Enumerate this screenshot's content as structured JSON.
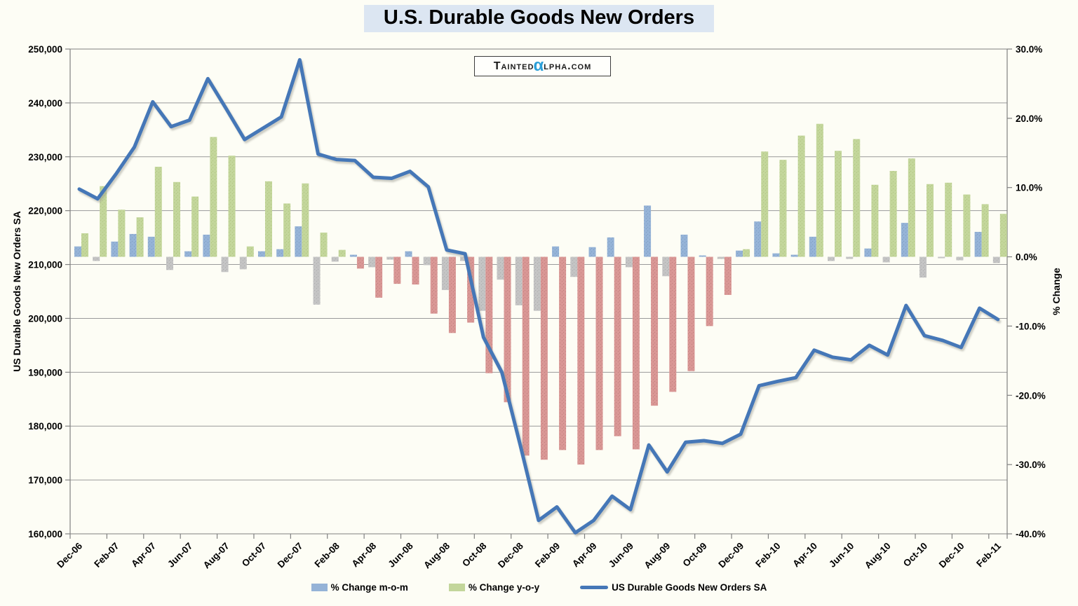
{
  "chart_data": {
    "type": "bar+line",
    "title": "U.S. Durable Goods New Orders",
    "legend_position": "bottom",
    "gridlines": "horizontal, every 10,000 on left axis",
    "categories": [
      "Dec-06",
      "Jan-07",
      "Feb-07",
      "Mar-07",
      "Apr-07",
      "May-07",
      "Jun-07",
      "Jul-07",
      "Aug-07",
      "Sep-07",
      "Oct-07",
      "Nov-07",
      "Dec-07",
      "Jan-08",
      "Feb-08",
      "Mar-08",
      "Apr-08",
      "May-08",
      "Jun-08",
      "Jul-08",
      "Aug-08",
      "Sep-08",
      "Oct-08",
      "Nov-08",
      "Dec-08",
      "Jan-09",
      "Feb-09",
      "Mar-09",
      "Apr-09",
      "May-09",
      "Jun-09",
      "Jul-09",
      "Aug-09",
      "Sep-09",
      "Oct-09",
      "Nov-09",
      "Dec-09",
      "Jan-10",
      "Feb-10",
      "Mar-10",
      "Apr-10",
      "May-10",
      "Jun-10",
      "Jul-10",
      "Aug-10",
      "Sep-10",
      "Oct-10",
      "Nov-10",
      "Dec-10",
      "Jan-11",
      "Feb-11"
    ],
    "x_axis": {
      "labels_shown_every": 2,
      "first_label": "Dec-06",
      "last_label": "Feb-11",
      "label_rotation_deg": -45
    },
    "left_axis": {
      "title": "US Durable Goods New Orders SA",
      "min": 160000,
      "max": 250000,
      "step": 10000,
      "tick_labels": [
        "250,000",
        "240,000",
        "230,000",
        "220,000",
        "210,000",
        "200,000",
        "190,000",
        "180,000",
        "170,000",
        "160,000"
      ]
    },
    "right_axis": {
      "title": "% Change",
      "min": -40,
      "max": 30,
      "step": 10,
      "tick_labels": [
        "30.0%",
        "20.0%",
        "10.0%",
        "0.0%",
        "-10.0%",
        "-20.0%",
        "-30.0%",
        "-40.0%"
      ]
    },
    "series": [
      {
        "name": "% Change m-o-m",
        "type": "bar",
        "axis": "right",
        "unit": "%",
        "color_positive": "#95B3D7",
        "color_negative": "#C4C4C4",
        "values": [
          1.5,
          -0.6,
          2.2,
          3.3,
          2.9,
          -1.9,
          0.8,
          3.2,
          -2.2,
          -1.8,
          0.8,
          1.1,
          4.4,
          -6.9,
          -0.7,
          0.3,
          -1.5,
          -0.4,
          0.8,
          -1.2,
          -4.8,
          -0.6,
          -7.8,
          -3.3,
          -7.0,
          -7.8,
          1.5,
          -2.9,
          1.4,
          2.8,
          -1.5,
          7.4,
          -2.8,
          3.2,
          0.2,
          -0.3,
          0.9,
          5.1,
          0.5,
          0.3,
          2.9,
          -0.6,
          -0.3,
          1.2,
          -0.8,
          4.9,
          -3.0,
          -0.2,
          -0.5,
          3.6,
          -0.9
        ]
      },
      {
        "name": "% Change y-o-y",
        "type": "bar",
        "axis": "right",
        "unit": "%",
        "color_positive": "#C3D69B",
        "color_negative": "#D99795",
        "values": [
          3.4,
          10.2,
          6.8,
          5.7,
          13.0,
          10.8,
          8.7,
          17.3,
          14.6,
          1.5,
          10.9,
          7.7,
          10.6,
          3.5,
          1.0,
          -1.7,
          -5.9,
          -3.9,
          -4.0,
          -8.2,
          -11.0,
          -9.5,
          -16.8,
          -21.0,
          -28.7,
          -29.3,
          -27.9,
          -30.0,
          -27.9,
          -25.9,
          -27.8,
          -21.5,
          -19.5,
          -16.5,
          -10.0,
          -5.5,
          1.1,
          15.2,
          14.0,
          17.5,
          19.2,
          15.3,
          17.0,
          10.4,
          12.4,
          14.2,
          10.5,
          10.7,
          9.0,
          7.6,
          6.2
        ]
      },
      {
        "name": "US Durable Goods New Orders SA",
        "type": "line",
        "axis": "left",
        "color": "#4577B7",
        "values": [
          224000,
          222200,
          226800,
          231800,
          240200,
          235600,
          236800,
          244500,
          238900,
          233200,
          235300,
          237400,
          248000,
          230500,
          229500,
          229300,
          226200,
          226000,
          227300,
          224400,
          212700,
          212000,
          196500,
          190000,
          176500,
          162500,
          165000,
          160200,
          162500,
          167000,
          164500,
          176500,
          171500,
          177000,
          177300,
          176800,
          178500,
          187500,
          188300,
          189000,
          194100,
          192800,
          192300,
          195000,
          193200,
          202400,
          196800,
          195900,
          194600,
          201900,
          199800
        ]
      }
    ]
  },
  "logo": {
    "prefix": "Tainted",
    "alpha": "α",
    "suffix": "lpha.com"
  },
  "colors": {
    "page_background": "#fdfdf5",
    "title_highlight": "#dce6f2",
    "gridline": "#9a9a9a",
    "axis_line": "#808080",
    "text": "#000000",
    "logo_alpha_blue": "#2b9fd8",
    "mom_positive": "#95B3D7",
    "mom_positive_dot": "#7d9cc0",
    "mom_negative": "#C4C4C4",
    "mom_negative_dot": "#ababab",
    "yoy_positive": "#C3D69B",
    "yoy_positive_dot": "#b0c47f",
    "yoy_negative": "#D99795",
    "yoy_negative_dot": "#c07e7c",
    "line_blue": "#4577B7",
    "line_shadow": "#9a9a90"
  }
}
